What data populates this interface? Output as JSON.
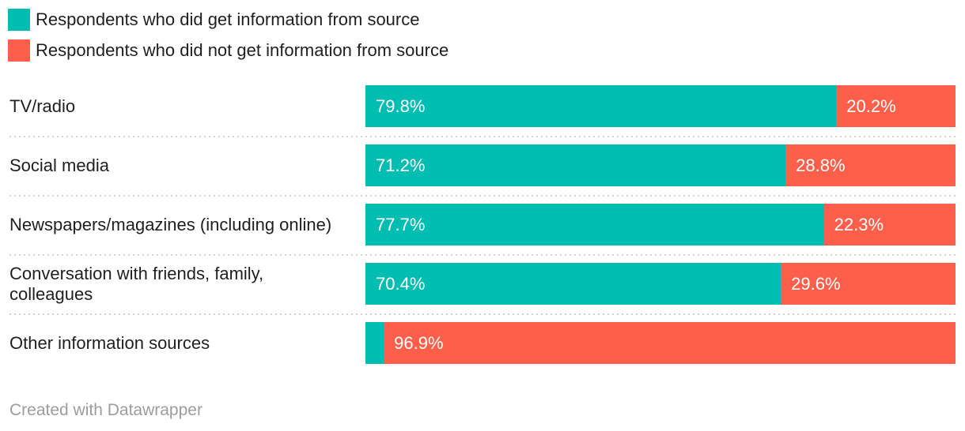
{
  "legend": {
    "items": [
      {
        "label": "Respondents who did get information from source",
        "color": "#00BDB2"
      },
      {
        "label": "Respondents who did not get information from source",
        "color": "#FD5F4B"
      }
    ]
  },
  "chart_data": {
    "type": "bar",
    "orientation": "horizontal",
    "stacked": true,
    "unit": "%",
    "xlim": [
      0,
      100
    ],
    "grid": false,
    "legend_position": "top-left",
    "categories": [
      "TV/radio",
      "Social media",
      "Newspapers/magazines (including online)",
      "Conversation with friends, family, colleagues",
      "Other information sources"
    ],
    "series": [
      {
        "name": "Respondents who did get information from source",
        "color": "#00BDB2",
        "values": [
          79.8,
          71.2,
          77.7,
          70.4,
          3.1
        ]
      },
      {
        "name": "Respondents who did not get information from source",
        "color": "#FD5F4B",
        "values": [
          20.2,
          28.8,
          22.3,
          29.6,
          96.9
        ]
      }
    ],
    "bar_labels": [
      [
        "79.8%",
        "20.2%"
      ],
      [
        "71.2%",
        "28.8%"
      ],
      [
        "77.7%",
        "22.3%"
      ],
      [
        "70.4%",
        "29.6%"
      ],
      [
        "",
        "96.9%"
      ]
    ]
  },
  "footer": {
    "credit": "Created with Datawrapper"
  }
}
